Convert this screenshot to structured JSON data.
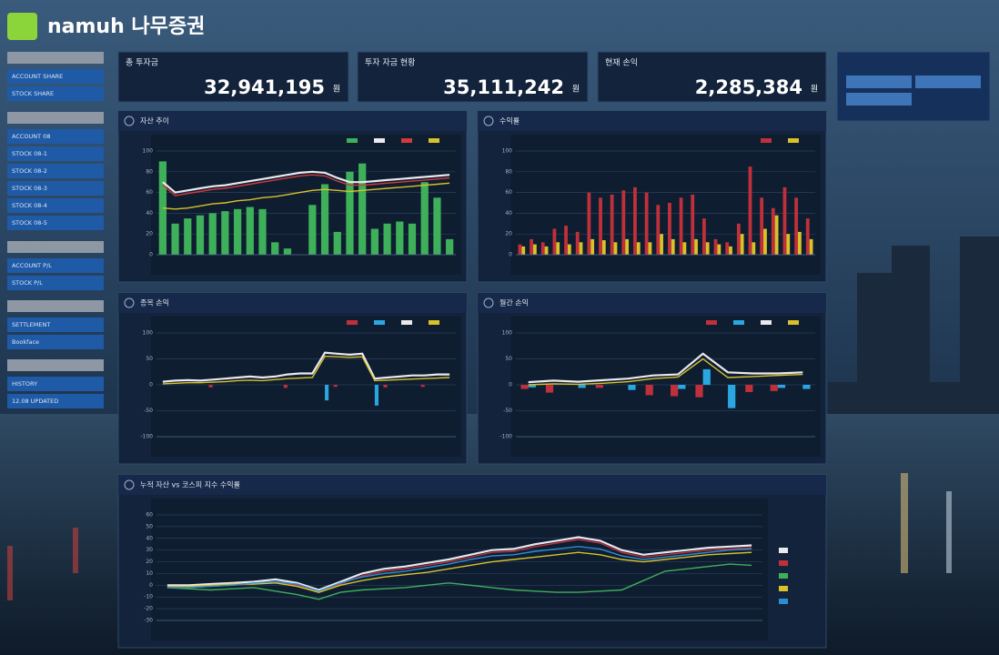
{
  "header": {
    "logo": "namuh 나무증권"
  },
  "sidebar": [
    {
      "items": [
        "ACCOUNT SHARE",
        "STOCK SHARE"
      ]
    },
    {
      "items": [
        "ACCOUNT 08",
        "STOCK 08-1",
        "STOCK 08-2",
        "STOCK 08-3",
        "STOCK 08-4",
        "STOCK 08-5"
      ]
    },
    {
      "items": [
        "ACCOUNT P/L",
        "STOCK P/L"
      ]
    },
    {
      "items": [
        "SETTLEMENT",
        "Bookface"
      ]
    },
    {
      "items": [
        "HISTORY",
        "12.08 UPDATED"
      ]
    }
  ],
  "kpis": [
    {
      "title": "총 투자금",
      "value": "32,941,195",
      "unit": "원"
    },
    {
      "title": "투자 자금 현황",
      "value": "35,111,242",
      "unit": "원"
    },
    {
      "title": "현재 손익",
      "value": "2,285,384",
      "unit": "원"
    }
  ],
  "chart_data": [
    {
      "type": "bar",
      "title": "자산 추이",
      "ylim": [
        0,
        100
      ],
      "yticks": [
        0,
        20,
        40,
        60,
        80,
        100
      ],
      "series": [
        {
          "kind": "bar",
          "color": "#3fb05a",
          "values": [
            90,
            30,
            35,
            38,
            40,
            42,
            44,
            46,
            44,
            12,
            6,
            0,
            48,
            68,
            22,
            80,
            88,
            25,
            30,
            32,
            30,
            70,
            55,
            15
          ]
        },
        {
          "kind": "line",
          "color": "#e9e9ee",
          "values": [
            70,
            60,
            62,
            64,
            66,
            67,
            69,
            71,
            73,
            75,
            77,
            79,
            80,
            79,
            74,
            70,
            70,
            71,
            72,
            73,
            74,
            75,
            76,
            77
          ]
        },
        {
          "kind": "line",
          "color": "#d03a3a",
          "values": [
            67,
            57,
            59,
            61,
            63,
            64,
            66,
            68,
            70,
            72,
            74,
            76,
            77,
            76,
            71,
            67,
            67,
            68,
            69,
            70,
            71,
            72,
            73,
            74
          ]
        },
        {
          "kind": "line",
          "color": "#d8c22a",
          "values": [
            45,
            44,
            45,
            47,
            49,
            50,
            52,
            53,
            55,
            56,
            58,
            60,
            62,
            63,
            62,
            61,
            62,
            63,
            64,
            65,
            66,
            67,
            68,
            69
          ]
        }
      ]
    },
    {
      "type": "bar",
      "title": "수익률",
      "ylim": [
        0,
        100
      ],
      "yticks": [
        0,
        20,
        40,
        60,
        80,
        100
      ],
      "series": [
        {
          "kind": "bar",
          "color": "#c0303a",
          "values": [
            10,
            15,
            12,
            25,
            28,
            22,
            60,
            55,
            58,
            62,
            65,
            60,
            48,
            50,
            55,
            58,
            35,
            15,
            12,
            30,
            85,
            55,
            45,
            65,
            55,
            35
          ]
        },
        {
          "kind": "bar",
          "color": "#d8c22a",
          "values": [
            8,
            10,
            8,
            12,
            10,
            12,
            15,
            14,
            12,
            15,
            12,
            12,
            20,
            15,
            12,
            15,
            12,
            10,
            8,
            20,
            12,
            25,
            38,
            20,
            22,
            15
          ]
        }
      ]
    },
    {
      "type": "bar",
      "title": "종목 손익",
      "ylim": [
        -100,
        100
      ],
      "yticks": [
        -100,
        -50,
        0,
        50,
        100
      ],
      "series": [
        {
          "kind": "bar",
          "color": "#c0303a",
          "values": [
            0,
            0,
            0,
            0,
            -5,
            0,
            0,
            0,
            0,
            0,
            -6,
            0,
            0,
            0,
            -4,
            0,
            0,
            0,
            -5,
            0,
            0,
            -4,
            0,
            0
          ]
        },
        {
          "kind": "bar",
          "color": "#2aa6e0",
          "values": [
            0,
            0,
            0,
            0,
            0,
            0,
            0,
            0,
            0,
            0,
            0,
            0,
            0,
            -30,
            0,
            0,
            0,
            -40,
            0,
            0,
            0,
            0,
            0,
            0
          ]
        },
        {
          "kind": "line",
          "color": "#e9e9ee",
          "values": [
            6,
            8,
            9,
            8,
            10,
            12,
            14,
            16,
            14,
            16,
            20,
            22,
            22,
            62,
            60,
            58,
            60,
            12,
            14,
            16,
            18,
            18,
            20,
            20
          ]
        },
        {
          "kind": "line",
          "color": "#d8c22a",
          "values": [
            2,
            3,
            4,
            4,
            5,
            6,
            8,
            9,
            8,
            10,
            12,
            13,
            14,
            55,
            54,
            53,
            54,
            8,
            9,
            10,
            11,
            12,
            13,
            14
          ]
        }
      ]
    },
    {
      "type": "bar",
      "title": "월간 손익",
      "ylim": [
        -100,
        100
      ],
      "yticks": [
        -100,
        -50,
        0,
        50,
        100
      ],
      "series": [
        {
          "kind": "bar",
          "color": "#c0303a",
          "values": [
            -8,
            -15,
            0,
            -6,
            0,
            -20,
            -22,
            -24,
            0,
            -14,
            -12,
            0
          ]
        },
        {
          "kind": "bar",
          "color": "#2aa6e0",
          "values": [
            -5,
            0,
            -6,
            0,
            -10,
            0,
            -8,
            30,
            -45,
            0,
            -6,
            -8
          ]
        },
        {
          "kind": "line",
          "color": "#e9e9ee",
          "values": [
            5,
            8,
            6,
            9,
            12,
            18,
            20,
            60,
            24,
            22,
            22,
            24
          ]
        },
        {
          "kind": "line",
          "color": "#d8c22a",
          "values": [
            0,
            2,
            1,
            3,
            6,
            12,
            15,
            50,
            14,
            16,
            18,
            20
          ]
        }
      ]
    },
    {
      "type": "line",
      "title": "누적 자산 vs 코스피 지수 수익률",
      "ylim": [
        -30,
        60
      ],
      "yticks": [
        -30,
        -20,
        -10,
        0,
        10,
        20,
        30,
        40,
        50,
        60
      ],
      "series": [
        {
          "kind": "line",
          "color": "#e9e9ee",
          "values": [
            0,
            0,
            1,
            2,
            3,
            5,
            2,
            -4,
            3,
            10,
            14,
            16,
            19,
            22,
            26,
            30,
            31,
            35,
            38,
            41,
            38,
            30,
            26,
            28,
            30,
            32,
            33,
            34
          ]
        },
        {
          "kind": "line",
          "color": "#c0303a",
          "values": [
            -2,
            -2,
            -1,
            0,
            1,
            3,
            0,
            -6,
            1,
            8,
            12,
            14,
            17,
            20,
            24,
            28,
            29,
            33,
            36,
            39,
            36,
            28,
            24,
            26,
            28,
            30,
            31,
            32
          ]
        },
        {
          "kind": "line",
          "color": "#3fb05a",
          "values": [
            -2,
            -3,
            -4,
            -3,
            -2,
            -5,
            -8,
            -12,
            -6,
            -4,
            -3,
            -2,
            0,
            2,
            0,
            -2,
            -4,
            -5,
            -6,
            -6,
            -5,
            -4,
            4,
            12,
            14,
            16,
            18,
            17
          ]
        },
        {
          "kind": "line",
          "color": "#d8c22a",
          "values": [
            -1,
            -1,
            0,
            1,
            1,
            2,
            -1,
            -6,
            0,
            4,
            7,
            9,
            11,
            14,
            17,
            20,
            22,
            24,
            26,
            28,
            26,
            22,
            20,
            22,
            24,
            26,
            27,
            28
          ]
        },
        {
          "kind": "line",
          "color": "#2a8fd0",
          "values": [
            -2,
            -2,
            -1,
            0,
            2,
            3,
            1,
            -5,
            2,
            7,
            10,
            12,
            15,
            18,
            22,
            25,
            26,
            29,
            31,
            33,
            31,
            25,
            22,
            24,
            26,
            28,
            30,
            31
          ]
        }
      ]
    }
  ]
}
